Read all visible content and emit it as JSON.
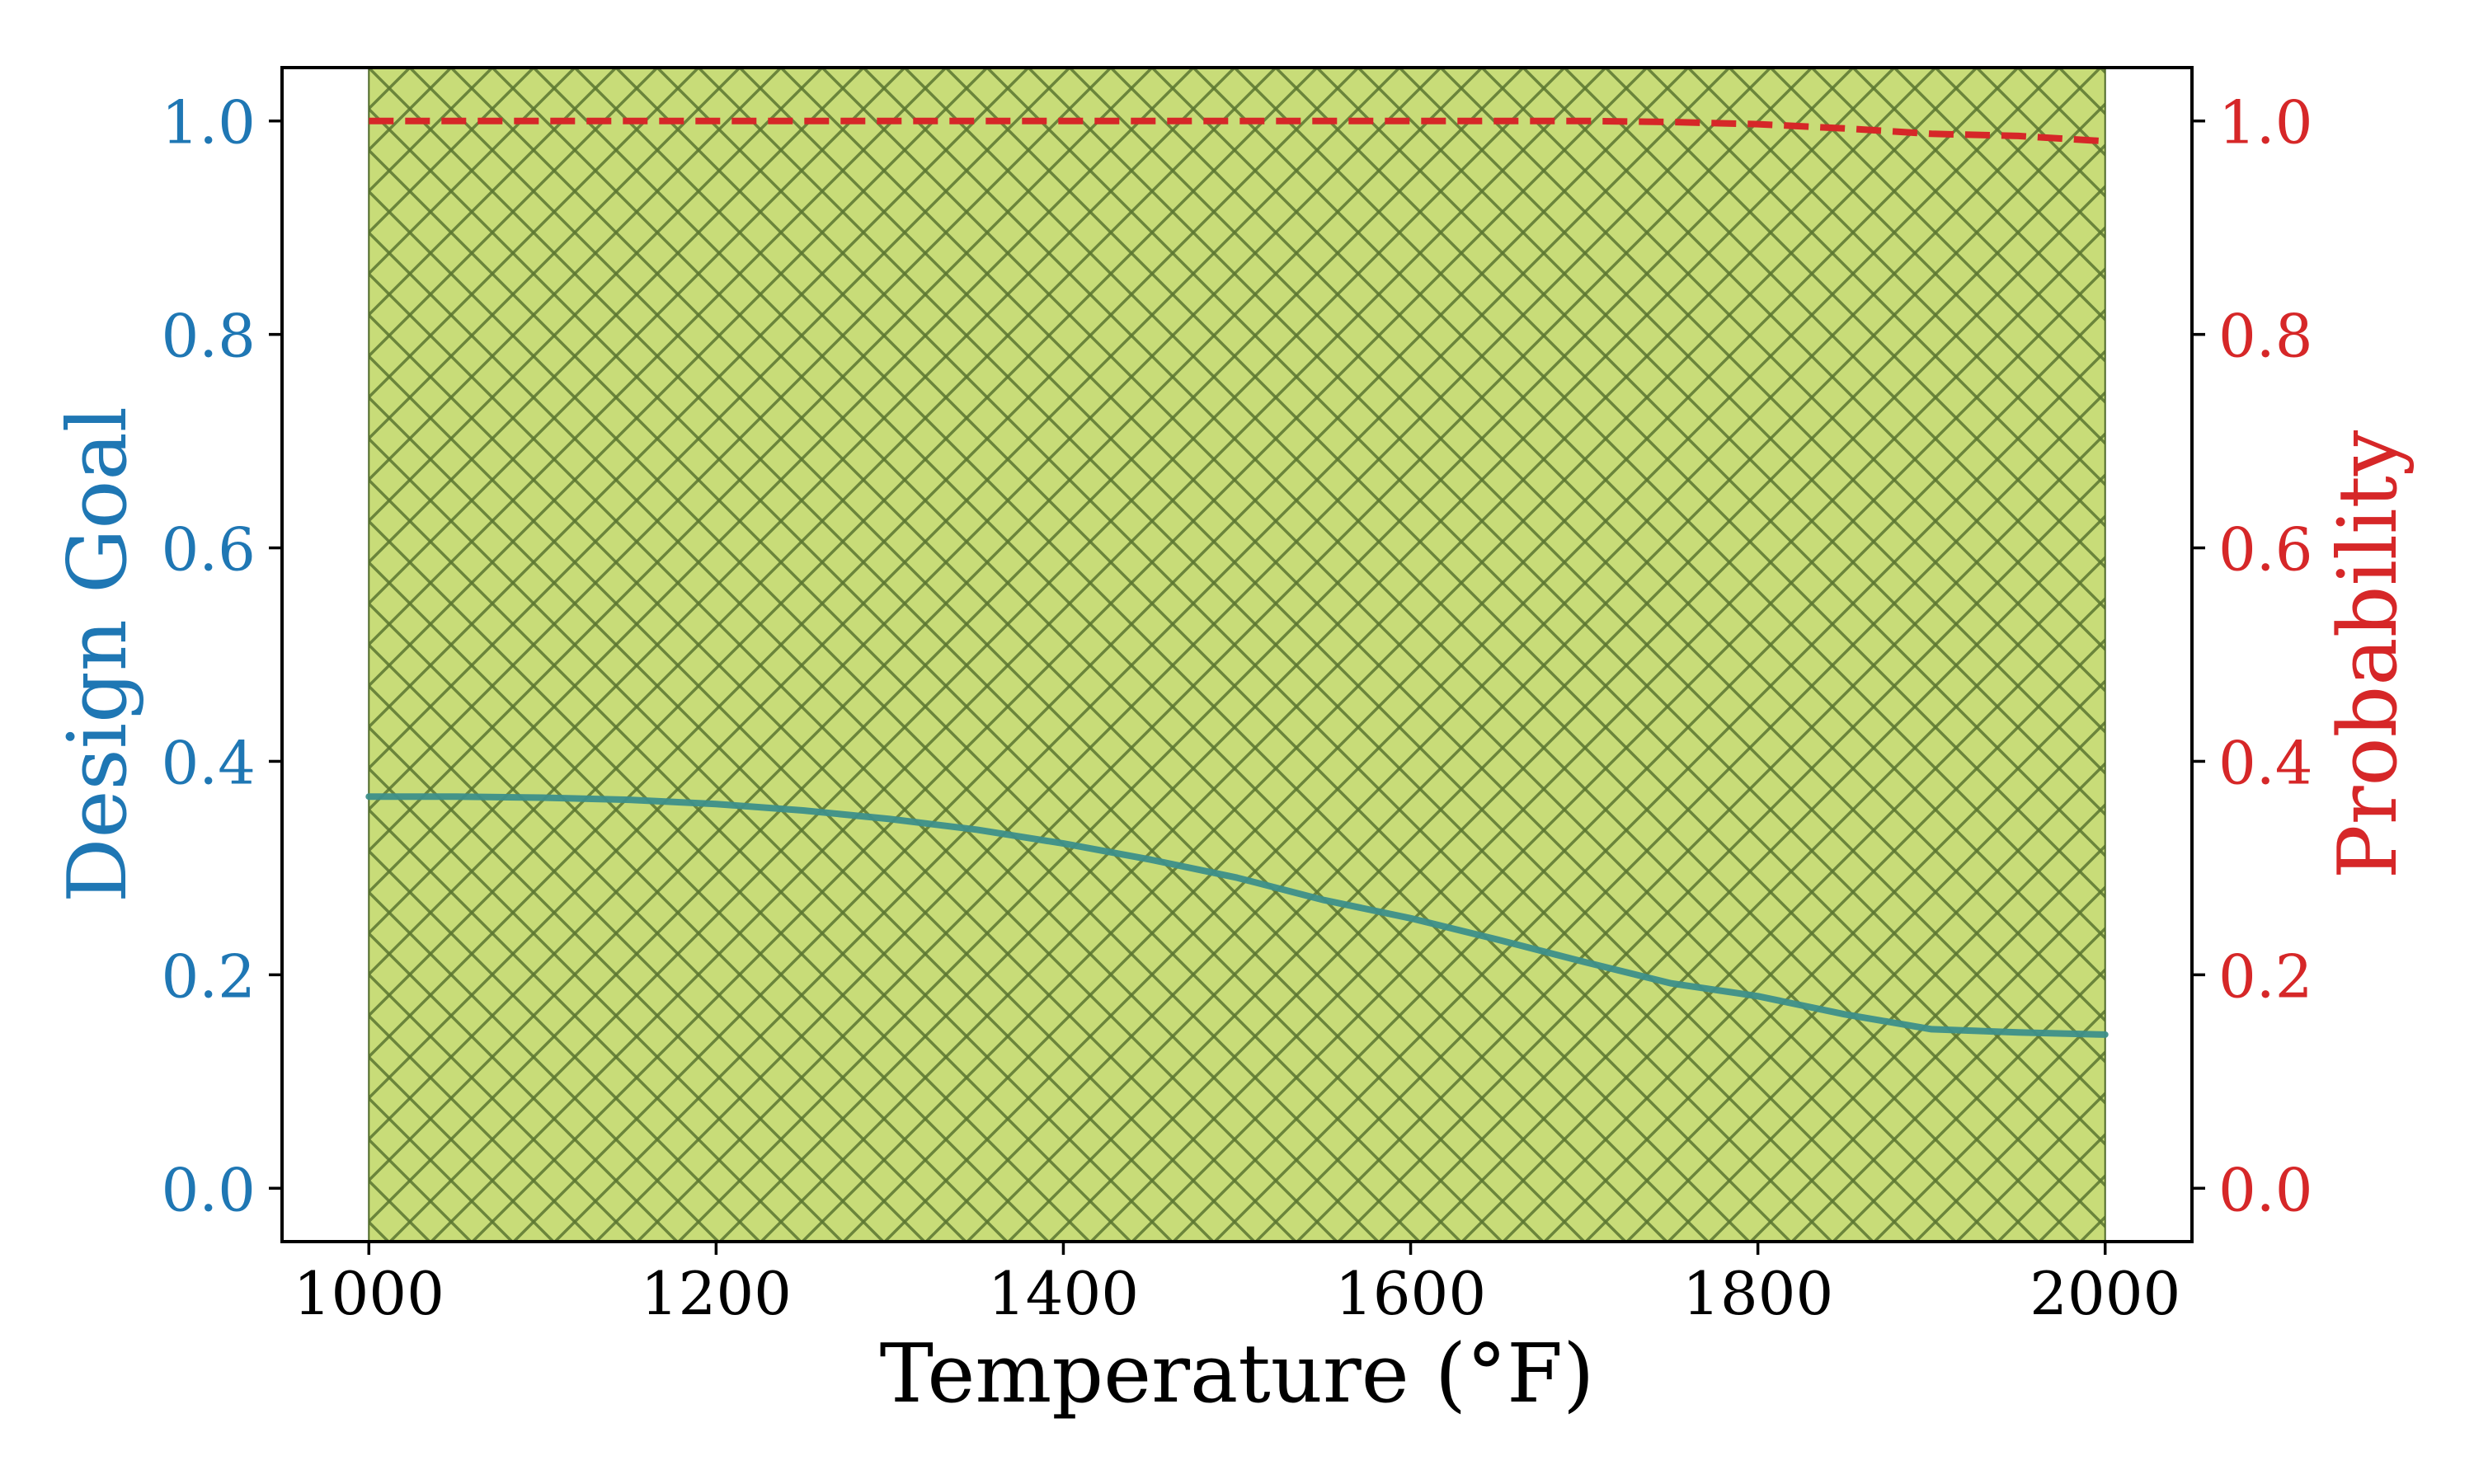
{
  "chart_data": {
    "type": "line",
    "title": "",
    "xlabel": "Temperature (°F)",
    "ylabel": "Design Goal",
    "ylabel_right": "Probability",
    "xlim": [
      950,
      2050
    ],
    "ylim": [
      -0.05,
      1.05
    ],
    "ylim_right": [
      -0.05,
      1.05
    ],
    "grid": false,
    "legend": null,
    "x_ticks": [
      1000,
      1200,
      1400,
      1600,
      1800,
      2000
    ],
    "x_tick_labels": [
      "1000",
      "1200",
      "1400",
      "1600",
      "1800",
      "2000"
    ],
    "y_ticks": [
      0.0,
      0.2,
      0.4,
      0.6,
      0.8,
      1.0
    ],
    "y_tick_labels": [
      "0.0",
      "0.2",
      "0.4",
      "0.6",
      "0.8",
      "1.0"
    ],
    "y_right_ticks": [
      0.0,
      0.2,
      0.4,
      0.6,
      0.8,
      1.0
    ],
    "y_right_tick_labels": [
      "0.0",
      "0.2",
      "0.4",
      "0.6",
      "0.8",
      "1.0"
    ],
    "shaded_region": {
      "x_start": 1000,
      "x_end": 2000,
      "fill_color": "#c8dc78",
      "hatch": "crosshatch (x)",
      "hatch_color": "#5a7530"
    },
    "x": [
      1000,
      1050,
      1100,
      1150,
      1200,
      1250,
      1300,
      1350,
      1400,
      1450,
      1500,
      1550,
      1600,
      1650,
      1700,
      1750,
      1800,
      1850,
      1900,
      1950,
      2000
    ],
    "series": [
      {
        "name": "Design Goal",
        "axis": "left",
        "style": "solid",
        "color": "#3d8f8a",
        "values": [
          0.367,
          0.367,
          0.366,
          0.364,
          0.36,
          0.354,
          0.346,
          0.336,
          0.323,
          0.308,
          0.291,
          0.27,
          0.253,
          0.233,
          0.212,
          0.192,
          0.18,
          0.163,
          0.149,
          0.146,
          0.144
        ]
      },
      {
        "name": "Probability",
        "axis": "right",
        "style": "dashed",
        "color": "#d62728",
        "values": [
          1.0,
          1.0,
          1.0,
          1.0,
          1.0,
          1.0,
          1.0,
          1.0,
          1.0,
          1.0,
          1.0,
          1.0,
          1.0,
          1.0,
          1.0,
          0.999,
          0.997,
          0.993,
          0.988,
          0.986,
          0.981
        ]
      }
    ]
  },
  "colors": {
    "left_axis": "#1f77b4",
    "right_axis": "#d62728",
    "axis_text": "#000000"
  }
}
